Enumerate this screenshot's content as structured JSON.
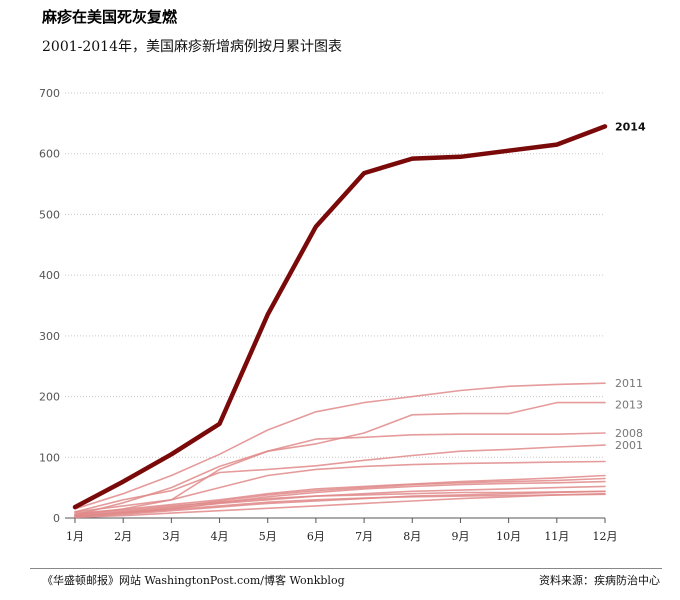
{
  "header": {
    "title": "麻疹在美国死灰复燃",
    "subtitle": "2001-2014年，美国麻疹新增病例按月累计图表"
  },
  "footer": {
    "source_left": "《华盛顿邮报》网站 WashingtonPost.com/博客 Wonkblog",
    "source_right": "资料来源：疾病防治中心"
  },
  "colors": {
    "highlight": "#7a0a0a",
    "background_series": "#e08a8a",
    "grid": "#c8c8c8"
  },
  "chart_data": {
    "type": "line",
    "title": "麻疹在美国死灰复燃",
    "subtitle": "2001-2014年，美国麻疹新增病例按月累计图表",
    "categories": [
      "1月",
      "2月",
      "3月",
      "4月",
      "5月",
      "6月",
      "7月",
      "8月",
      "9月",
      "10月",
      "11月",
      "12月"
    ],
    "ylim": [
      0,
      700
    ],
    "yticks": [
      0,
      100,
      200,
      300,
      400,
      500,
      600,
      700
    ],
    "grid": "horizontal dotted",
    "series": [
      {
        "name": "",
        "values": [
          5,
          15,
          30,
          50,
          70,
          80,
          85,
          88,
          90,
          91,
          92,
          93
        ]
      },
      {
        "name": "",
        "values": [
          2,
          8,
          15,
          25,
          35,
          42,
          48,
          52,
          55,
          57,
          58,
          60
        ]
      },
      {
        "name": "",
        "values": [
          8,
          14,
          22,
          30,
          40,
          48,
          52,
          56,
          60,
          63,
          66,
          70
        ]
      },
      {
        "name": "",
        "values": [
          4,
          10,
          18,
          28,
          38,
          45,
          50,
          55,
          58,
          60,
          62,
          65
        ]
      },
      {
        "name": "",
        "values": [
          3,
          9,
          16,
          24,
          30,
          36,
          40,
          44,
          46,
          48,
          50,
          52
        ]
      },
      {
        "name": "",
        "values": [
          6,
          12,
          20,
          26,
          32,
          36,
          38,
          40,
          42,
          42,
          43,
          44
        ]
      },
      {
        "name": "",
        "values": [
          2,
          6,
          12,
          18,
          24,
          28,
          32,
          36,
          38,
          40,
          42,
          44
        ]
      },
      {
        "name": "",
        "values": [
          1,
          4,
          8,
          12,
          16,
          20,
          24,
          28,
          32,
          35,
          38,
          40
        ]
      },
      {
        "name": "",
        "values": [
          3,
          8,
          14,
          20,
          26,
          30,
          33,
          35,
          36,
          37,
          38,
          39
        ]
      },
      {
        "name": "2001",
        "values": [
          10,
          30,
          45,
          75,
          80,
          86,
          95,
          103,
          110,
          113,
          117,
          120
        ]
      },
      {
        "name": "2008",
        "values": [
          5,
          25,
          50,
          85,
          110,
          130,
          133,
          137,
          138,
          138,
          138,
          140
        ]
      },
      {
        "name": "2013",
        "values": [
          10,
          20,
          30,
          80,
          110,
          122,
          140,
          170,
          172,
          172,
          190,
          190
        ]
      },
      {
        "name": "2011",
        "values": [
          15,
          40,
          70,
          105,
          145,
          175,
          190,
          200,
          210,
          217,
          220,
          222
        ]
      },
      {
        "name": "2014",
        "highlight": true,
        "values": [
          18,
          60,
          105,
          155,
          335,
          480,
          568,
          592,
          595,
          605,
          615,
          645
        ]
      }
    ]
  }
}
